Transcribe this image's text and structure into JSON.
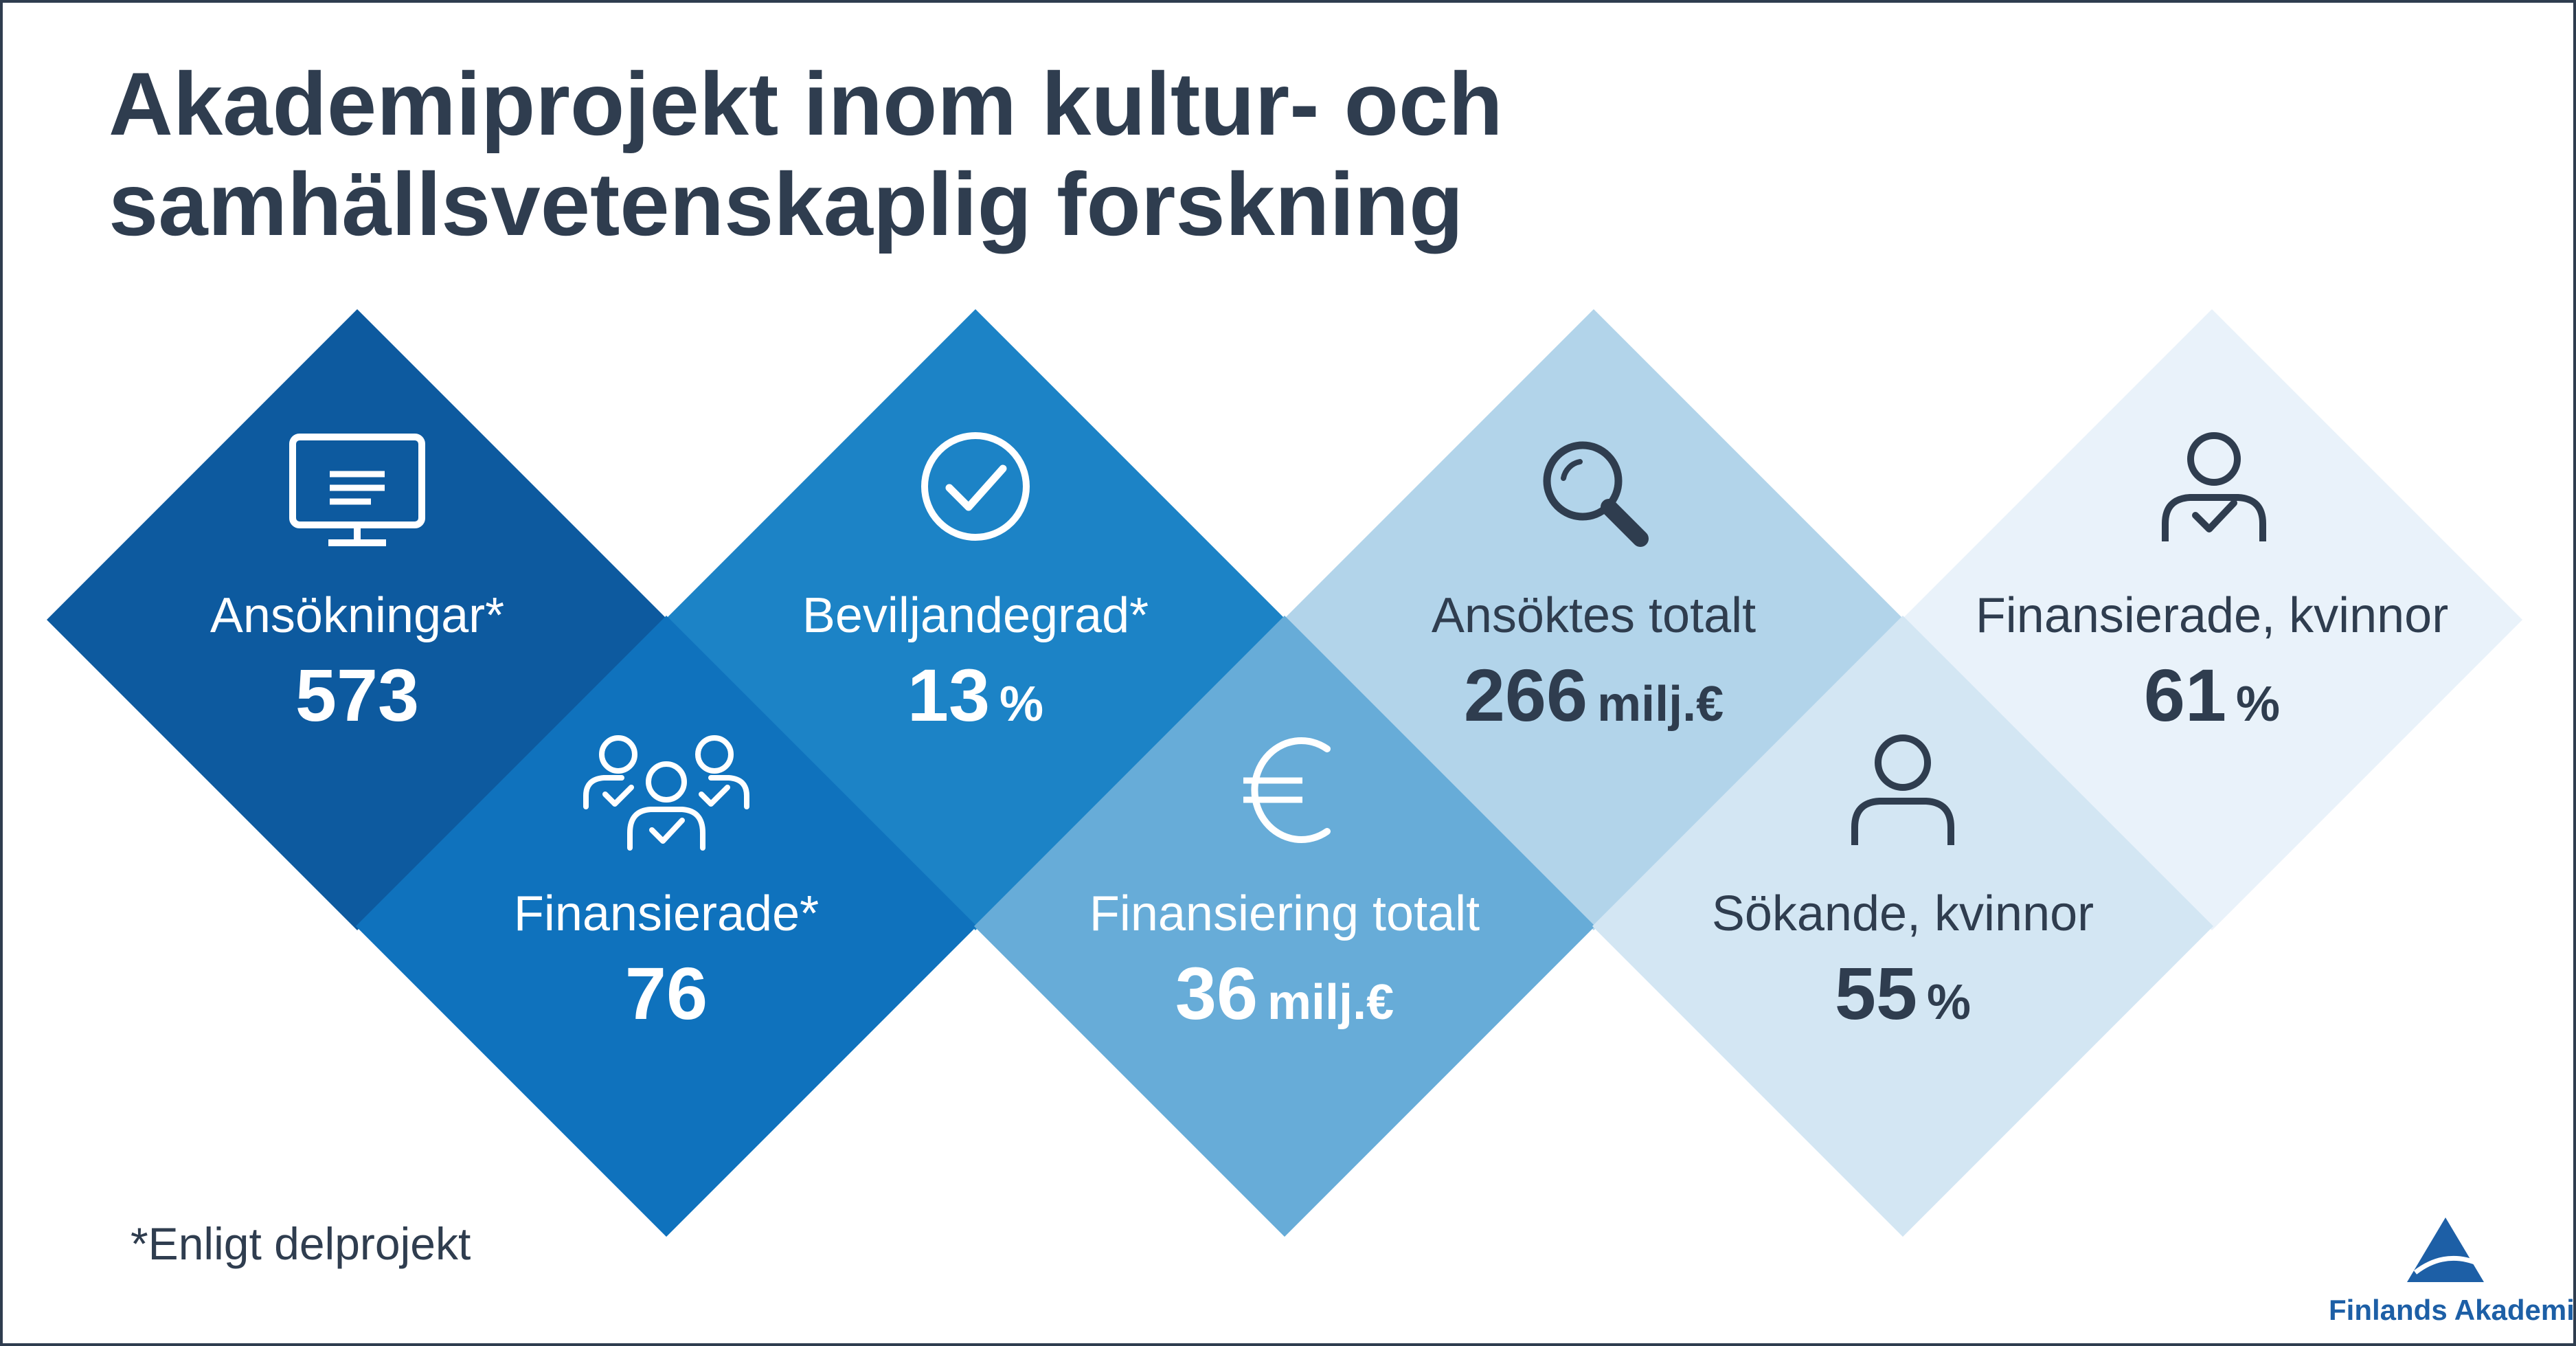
{
  "title": {
    "line1": "Akademiprojekt inom kultur- och",
    "line2": "samhällsvetenskaplig forskning"
  },
  "stats": [
    {
      "label": "Ansökningar*",
      "value": "573",
      "unit": "",
      "icon": "monitor-icon",
      "color": "#0d5a9f"
    },
    {
      "label": "Finansierade*",
      "value": "76",
      "unit": "",
      "icon": "people-check-icon",
      "color": "#0f72bd"
    },
    {
      "label": "Beviljandegrad*",
      "value": "13",
      "unit": "%",
      "icon": "check-circle-icon",
      "color": "#1c83c6"
    },
    {
      "label": "Finansiering totalt",
      "value": "36",
      "unit": "milj.€",
      "icon": "euro-icon",
      "color": "#67acd8"
    },
    {
      "label": "Ansöktes totalt",
      "value": "266",
      "unit": "milj.€",
      "icon": "magnifier-icon",
      "color": "#b2d4ea"
    },
    {
      "label": "Sökande, kvinnor",
      "value": "55",
      "unit": "%",
      "icon": "person-icon",
      "color": "#d3e6f3"
    },
    {
      "label": "Finansierade, kvinnor",
      "value": "61",
      "unit": "%",
      "icon": "person-check-icon",
      "color": "#e9f2fa"
    }
  ],
  "footnote": "*Enligt delprojekt",
  "logo": {
    "text": "Finlands Akademi"
  }
}
